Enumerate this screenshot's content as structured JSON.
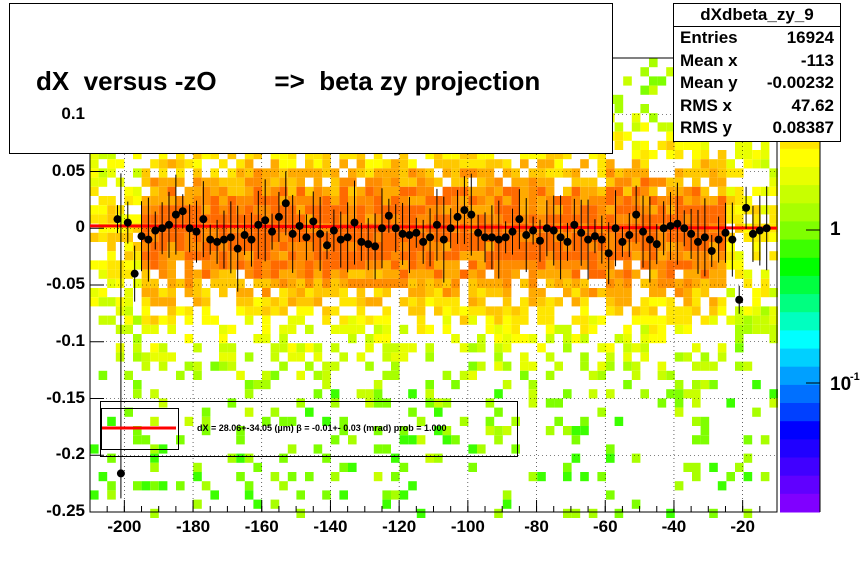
{
  "title": "dX  versus -zO        =>  beta zy projection",
  "stats": {
    "name": "dXdbeta_zy_9",
    "rows": [
      {
        "key": "Entries",
        "value": "16924"
      },
      {
        "key": "Mean x",
        "value": "-113"
      },
      {
        "key": "Mean y",
        "value": "-0.00232"
      },
      {
        "key": "RMS x",
        "value": "47.62"
      },
      {
        "key": "RMS y",
        "value": "0.08387"
      }
    ]
  },
  "legend": {
    "text": "dX =   28.06+-34.05 (µm) β =  -0.01+- 0.03 (mrad) prob = 1.000",
    "line_color": "#ff0000"
  },
  "chart_data": {
    "type": "heatmap",
    "title": "dX  versus -zO        =>  beta zy projection",
    "xlim": [
      -210,
      -10
    ],
    "ylim": [
      -0.25,
      0.15
    ],
    "xticks": [
      -200,
      -180,
      -160,
      -140,
      -120,
      -100,
      -80,
      -60,
      -40,
      -20
    ],
    "xtick_labels": [
      "-200",
      "-180",
      "-160",
      "-140",
      "-120",
      "-100",
      "-80",
      "-60",
      "-40",
      "-20"
    ],
    "yticks": [
      -0.25,
      -0.2,
      -0.15,
      -0.1,
      -0.05,
      0,
      0.05,
      0.1
    ],
    "ytick_labels": [
      "-0.25",
      "-0.2",
      "-0.15",
      "-0.1",
      "-0.05",
      "0",
      "0.05",
      "0.1"
    ],
    "z_scale": "log",
    "z_labels": [
      "1",
      "10"
    ],
    "z_label_exponent": "-1",
    "grid": true,
    "fit_line": {
      "slope": -1e-05,
      "intercept": 3e-05,
      "color": "#ff0000"
    },
    "profile_points": [
      {
        "x": -202,
        "y": 0.008
      },
      {
        "x": -199,
        "y": 0.005
      },
      {
        "x": -197,
        "y": -0.04
      },
      {
        "x": -195,
        "y": -0.007
      },
      {
        "x": -193,
        "y": -0.01
      },
      {
        "x": -191,
        "y": -0.002
      },
      {
        "x": -189,
        "y": 0.0
      },
      {
        "x": -187,
        "y": 0.003
      },
      {
        "x": -185,
        "y": 0.012
      },
      {
        "x": -183,
        "y": 0.015
      },
      {
        "x": -181,
        "y": 0.0
      },
      {
        "x": -179,
        "y": -0.003
      },
      {
        "x": -177,
        "y": 0.008
      },
      {
        "x": -175,
        "y": -0.01
      },
      {
        "x": -173,
        "y": -0.012
      },
      {
        "x": -171,
        "y": -0.01
      },
      {
        "x": -169,
        "y": -0.008
      },
      {
        "x": -167,
        "y": -0.018
      },
      {
        "x": -165,
        "y": -0.006
      },
      {
        "x": -163,
        "y": -0.01
      },
      {
        "x": -161,
        "y": 0.003
      },
      {
        "x": -159,
        "y": 0.007
      },
      {
        "x": -157,
        "y": -0.003
      },
      {
        "x": -155,
        "y": 0.01
      },
      {
        "x": -153,
        "y": 0.022
      },
      {
        "x": -151,
        "y": -0.005
      },
      {
        "x": -149,
        "y": 0.002
      },
      {
        "x": -147,
        "y": -0.008
      },
      {
        "x": -145,
        "y": 0.006
      },
      {
        "x": -143,
        "y": -0.005
      },
      {
        "x": -141,
        "y": -0.015
      },
      {
        "x": -139,
        "y": -0.002
      },
      {
        "x": -137,
        "y": -0.01
      },
      {
        "x": -135,
        "y": -0.008
      },
      {
        "x": -133,
        "y": 0.005
      },
      {
        "x": -131,
        "y": -0.012
      },
      {
        "x": -129,
        "y": -0.014
      },
      {
        "x": -127,
        "y": -0.016
      },
      {
        "x": -125,
        "y": 0.0
      },
      {
        "x": -123,
        "y": 0.011
      },
      {
        "x": -121,
        "y": 0.0
      },
      {
        "x": -119,
        "y": -0.005
      },
      {
        "x": -117,
        "y": -0.006
      },
      {
        "x": -115,
        "y": -0.004
      },
      {
        "x": -113,
        "y": -0.012
      },
      {
        "x": -111,
        "y": -0.008
      },
      {
        "x": -109,
        "y": 0.003
      },
      {
        "x": -107,
        "y": -0.01
      },
      {
        "x": -105,
        "y": 0.0
      },
      {
        "x": -103,
        "y": 0.01
      },
      {
        "x": -101,
        "y": 0.016
      },
      {
        "x": -99,
        "y": 0.012
      },
      {
        "x": -97,
        "y": -0.004
      },
      {
        "x": -95,
        "y": -0.008
      },
      {
        "x": -93,
        "y": -0.008
      },
      {
        "x": -91,
        "y": -0.01
      },
      {
        "x": -89,
        "y": -0.008
      },
      {
        "x": -87,
        "y": -0.003
      },
      {
        "x": -85,
        "y": 0.008
      },
      {
        "x": -83,
        "y": -0.006
      },
      {
        "x": -81,
        "y": -0.002
      },
      {
        "x": -79,
        "y": -0.011
      },
      {
        "x": -77,
        "y": 0.0
      },
      {
        "x": -75,
        "y": -0.002
      },
      {
        "x": -73,
        "y": -0.008
      },
      {
        "x": -71,
        "y": -0.012
      },
      {
        "x": -69,
        "y": 0.003
      },
      {
        "x": -67,
        "y": -0.004
      },
      {
        "x": -65,
        "y": -0.01
      },
      {
        "x": -63,
        "y": -0.007
      },
      {
        "x": -61,
        "y": -0.01
      },
      {
        "x": -59,
        "y": -0.022
      },
      {
        "x": -57,
        "y": 0.0
      },
      {
        "x": -55,
        "y": -0.012
      },
      {
        "x": -53,
        "y": -0.006
      },
      {
        "x": -51,
        "y": 0.012
      },
      {
        "x": -49,
        "y": -0.003
      },
      {
        "x": -47,
        "y": -0.01
      },
      {
        "x": -45,
        "y": -0.014
      },
      {
        "x": -43,
        "y": 0.0
      },
      {
        "x": -41,
        "y": 0.002
      },
      {
        "x": -39,
        "y": 0.004
      },
      {
        "x": -37,
        "y": 0.0
      },
      {
        "x": -35,
        "y": -0.005
      },
      {
        "x": -33,
        "y": -0.012
      },
      {
        "x": -31,
        "y": -0.008
      },
      {
        "x": -29,
        "y": -0.02
      },
      {
        "x": -27,
        "y": -0.01
      },
      {
        "x": -25,
        "y": -0.004
      },
      {
        "x": -23,
        "y": -0.01
      },
      {
        "x": -21,
        "y": -0.063
      },
      {
        "x": -19,
        "y": 0.018
      },
      {
        "x": -17,
        "y": -0.005
      },
      {
        "x": -15,
        "y": -0.002
      },
      {
        "x": -13,
        "y": 0.0
      }
    ],
    "outlier_point": {
      "x": -201,
      "y": -0.216
    }
  }
}
